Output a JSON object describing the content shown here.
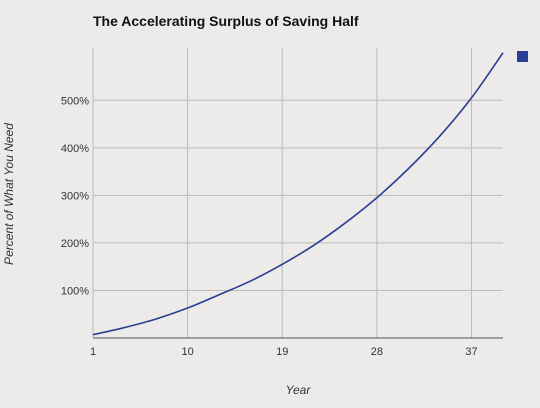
{
  "chart_data": {
    "type": "line",
    "title": "The Accelerating Surplus of Saving Half",
    "xlabel": "Year",
    "ylabel": "Percent of What You Need",
    "x_ticks": [
      1,
      10,
      19,
      28,
      37
    ],
    "y_ticks": [
      100,
      200,
      300,
      400,
      500
    ],
    "y_tick_suffix": "%",
    "xlim": [
      1,
      40
    ],
    "ylim": [
      0,
      610
    ],
    "grid": true,
    "legend": "top-right",
    "series": [
      {
        "color": "#2b3d94",
        "x": [
          1,
          4,
          7,
          10,
          13,
          16,
          19,
          22,
          25,
          28,
          31,
          34,
          37,
          40
        ],
        "y": [
          7,
          22,
          40,
          63,
          91,
          120,
          155,
          195,
          242,
          295,
          356,
          425,
          505,
          600
        ]
      }
    ]
  }
}
